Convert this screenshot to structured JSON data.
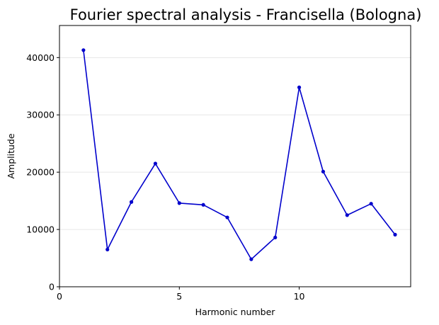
{
  "chart_data": {
    "type": "line",
    "title": "Fourier spectral analysis - Francisella (Bologna)",
    "xlabel": "Harmonic number",
    "ylabel": "Amplitude",
    "xlim": [
      0,
      14.65
    ],
    "ylim": [
      0,
      45600
    ],
    "x_ticks": [
      0,
      5,
      10
    ],
    "y_ticks": [
      0,
      10000,
      20000,
      30000,
      40000
    ],
    "grid": "horizontal",
    "series": [
      {
        "color": "#0000cc",
        "marker": "circle",
        "x": [
          1,
          2,
          3,
          4,
          5,
          6,
          7,
          8,
          9,
          10,
          11,
          12,
          13,
          14
        ],
        "values": [
          41300,
          6500,
          14800,
          21500,
          14600,
          14300,
          12100,
          4800,
          8600,
          34800,
          20100,
          12500,
          14500,
          9100
        ]
      }
    ]
  }
}
